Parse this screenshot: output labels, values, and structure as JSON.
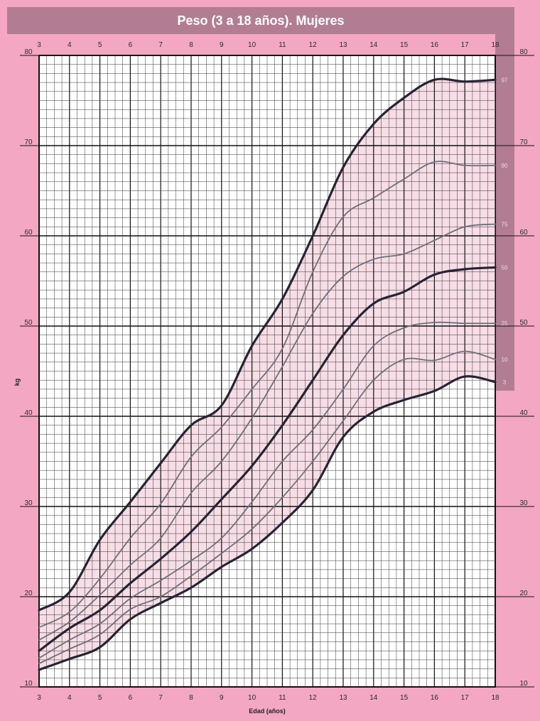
{
  "chart_data": {
    "type": "line",
    "title": "Peso (3 a 18  años). Mujeres",
    "xlabel": "Edad (años)",
    "ylabel": "kg",
    "xlim": [
      3,
      18
    ],
    "ylim": [
      10,
      80
    ],
    "grid": true,
    "x_ticks": [
      "3",
      "4",
      "5",
      "6",
      "7",
      "8",
      "9",
      "10",
      "11",
      "12",
      "13",
      "14",
      "15",
      "16",
      "17",
      "18"
    ],
    "y_ticks": [
      "10",
      "20",
      "30",
      "40",
      "50",
      "60",
      "70",
      "80"
    ],
    "x": [
      3,
      4,
      5,
      6,
      7,
      8,
      9,
      10,
      11,
      12,
      13,
      14,
      15,
      16,
      17,
      18
    ],
    "series": [
      {
        "name": "97",
        "values": [
          18.5,
          20.5,
          26.3,
          30.5,
          34.8,
          39.0,
          41.2,
          47.8,
          53.0,
          60.0,
          67.6,
          72.4,
          75.3,
          77.3,
          77.1,
          77.3
        ]
      },
      {
        "name": "90",
        "values": [
          16.6,
          18.3,
          22.0,
          26.5,
          30.3,
          35.5,
          38.8,
          43.0,
          47.5,
          56.0,
          62.1,
          64.2,
          66.3,
          68.2,
          67.8,
          67.8
        ]
      },
      {
        "name": "75",
        "values": [
          15.2,
          17.2,
          20.2,
          23.5,
          26.5,
          31.5,
          35.0,
          39.8,
          45.5,
          51.4,
          55.5,
          57.4,
          58.0,
          59.5,
          61.0,
          61.3
        ]
      },
      {
        "name": "50",
        "values": [
          14.0,
          16.5,
          18.5,
          21.5,
          24.2,
          27.2,
          30.8,
          34.5,
          39.0,
          44.0,
          49.0,
          52.5,
          53.8,
          55.7,
          56.3,
          56.5
        ]
      },
      {
        "name": "25",
        "values": [
          13.2,
          15.2,
          17.0,
          19.8,
          21.8,
          24.0,
          26.5,
          30.5,
          35.0,
          38.5,
          43.0,
          47.8,
          49.8,
          50.4,
          50.3,
          50.3
        ]
      },
      {
        "name": "10",
        "values": [
          12.6,
          14.2,
          15.8,
          18.6,
          20.0,
          22.3,
          24.8,
          27.5,
          31.0,
          35.0,
          39.5,
          44.0,
          46.3,
          46.2,
          47.2,
          46.3
        ]
      },
      {
        "name": "3",
        "values": [
          11.9,
          13.1,
          14.4,
          17.5,
          19.3,
          21.0,
          23.3,
          25.3,
          28.2,
          31.8,
          37.7,
          40.5,
          41.8,
          42.8,
          44.4,
          43.8
        ]
      }
    ],
    "colors": {
      "page_background": "#f3a7c2",
      "plot_background": "#ffffff",
      "band_fill": "#f7dde5",
      "grid_minor": "#333333",
      "grid_major": "#111111",
      "title_bar": "#b27d93",
      "title_text": "#ffffff",
      "right_strip": "#b27d93",
      "major_line": "#262334",
      "minor_line": "#6e6e7c",
      "percentile_label": "#e9dbe2"
    }
  }
}
